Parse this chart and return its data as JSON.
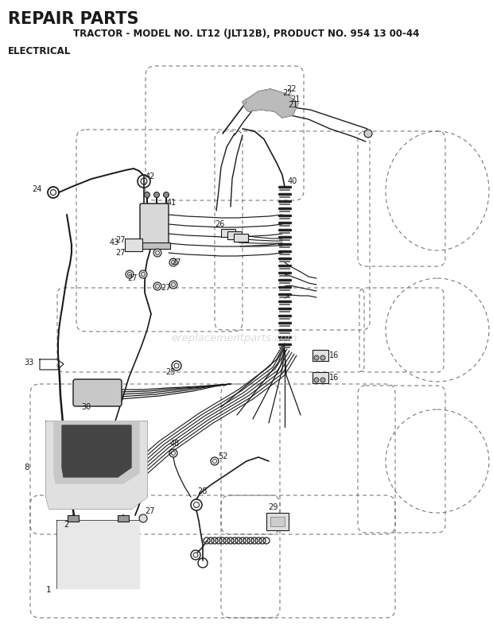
{
  "title_main": "REPAIR PARTS",
  "title_sub": "TRACTOR - MODEL NO. LT12 (JLT12B), PRODUCT NO. 954 13 00-44",
  "title_section": "ELECTRICAL",
  "bg_color": "#ffffff",
  "line_color": "#1a1a1a",
  "dashed_color": "#666666",
  "watermark": "ereplacementparts.com",
  "watermark_color": "#cccccc"
}
